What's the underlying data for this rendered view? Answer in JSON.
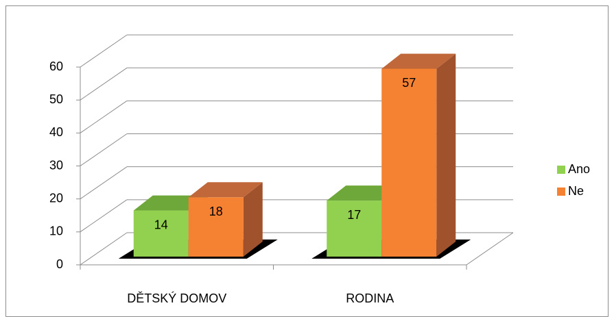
{
  "chart_data": {
    "type": "bar3d",
    "categories": [
      "DĚTSKÝ DOMOV",
      "RODINA"
    ],
    "series": [
      {
        "name": "Ano",
        "color": "#92d050",
        "values": [
          14,
          17
        ]
      },
      {
        "name": "Ne",
        "color": "#f58233",
        "values": [
          18,
          57
        ]
      }
    ],
    "ylim": [
      0,
      60
    ],
    "yticks": [
      0,
      10,
      20,
      30,
      40,
      50,
      60
    ],
    "grid": true,
    "legend": "right"
  }
}
